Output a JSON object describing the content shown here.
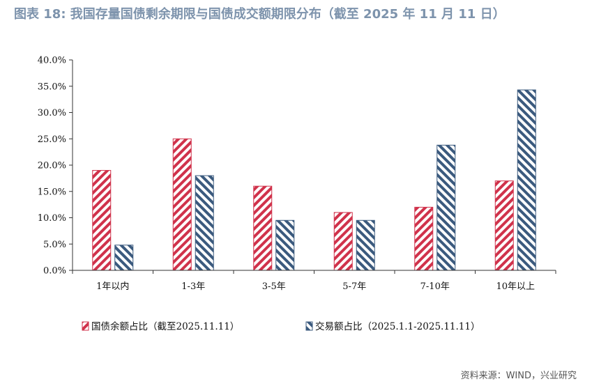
{
  "title": "图表 18: 我国存量国债剩余期限与国债成交额期限分布（截至 2025 年 11 月 11 日）",
  "source": "资料来源：WIND，兴业研究",
  "colors": {
    "series1": "#d0324b",
    "series2": "#3b5a7e"
  },
  "chart_data": {
    "type": "bar",
    "categories": [
      "1年以内",
      "1-3年",
      "3-5年",
      "5-7年",
      "7-10年",
      "10年以上"
    ],
    "series": [
      {
        "name": "国债余额占比（截至2025.11.11）",
        "values": [
          19.0,
          25.0,
          16.0,
          11.0,
          12.0,
          17.0
        ]
      },
      {
        "name": "交易额占比（2025.1.1-2025.11.11）",
        "values": [
          4.8,
          18.0,
          9.5,
          9.5,
          23.8,
          34.3
        ]
      }
    ],
    "ylim": [
      0,
      40
    ],
    "yticks": [
      "0.0%",
      "5.0%",
      "10.0%",
      "15.0%",
      "20.0%",
      "25.0%",
      "30.0%",
      "35.0%",
      "40.0%"
    ],
    "xlabel": "",
    "ylabel": "",
    "legend": "bottom"
  }
}
